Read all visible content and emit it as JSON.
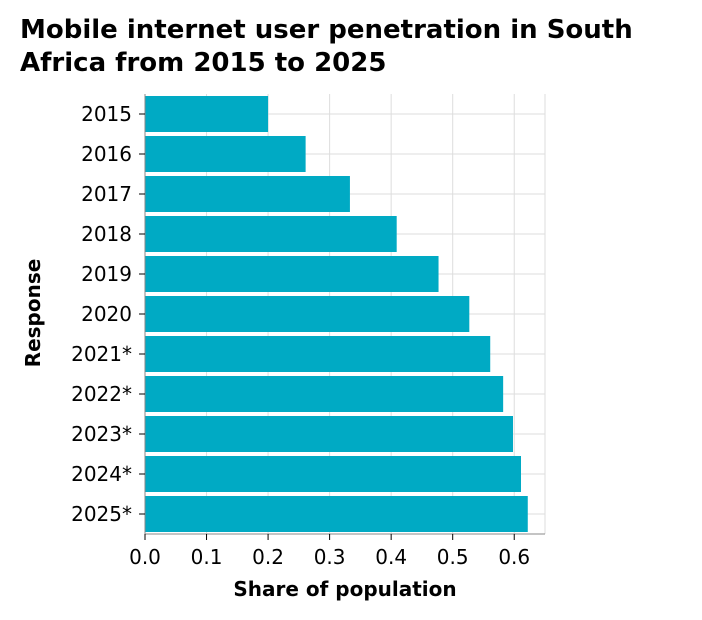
{
  "chart_data": {
    "type": "bar",
    "orientation": "horizontal",
    "title": "Mobile internet user penetration in South Africa from 2015 to 2025",
    "xlabel": "Share of population",
    "ylabel": "Response",
    "categories": [
      "2015",
      "2016",
      "2017",
      "2018",
      "2019",
      "2020",
      "2021*",
      "2022*",
      "2023*",
      "2024*",
      "2025*"
    ],
    "values": [
      0.2,
      0.261,
      0.333,
      0.409,
      0.477,
      0.527,
      0.561,
      0.582,
      0.598,
      0.611,
      0.622
    ],
    "xlim": [
      0,
      0.65
    ],
    "xticks": [
      0,
      0.1,
      0.2,
      0.3,
      0.4,
      0.5,
      0.6
    ],
    "xtick_labels": [
      "0.0",
      "0.1",
      "0.2",
      "0.3",
      "0.4",
      "0.5",
      "0.6"
    ],
    "grid": true,
    "bar_color": "#00aac4",
    "grid_color": "#dddddd"
  }
}
